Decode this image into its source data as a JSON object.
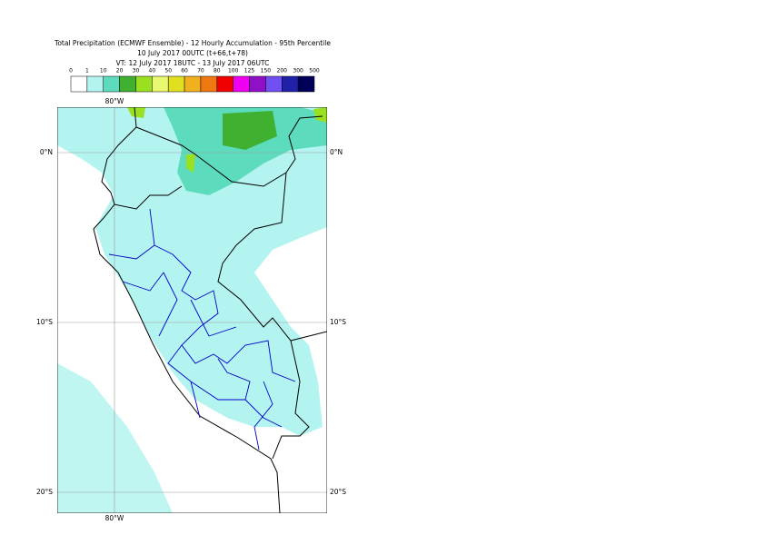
{
  "header": {
    "lines": [
      "Total Precipitation (ECMWF Ensemble) - 12 Hourly Accumulation - 95th Percentile",
      "10 July 2017 00UTC (t+66,t+78)",
      "VT: 12 July 2017 18UTC - 13 July 2017 06UTC"
    ]
  },
  "legend": {
    "labels": [
      "0",
      "1",
      "10",
      "20",
      "30",
      "40",
      "50",
      "60",
      "70",
      "80",
      "100",
      "125",
      "150",
      "200",
      "300",
      "500"
    ],
    "colors": [
      "#ffffff",
      "#b4f4f0",
      "#5cdcbc",
      "#40b030",
      "#98e020",
      "#e8f870",
      "#e0e020",
      "#f0b020",
      "#f07810",
      "#f00000",
      "#f000f0",
      "#9010c8",
      "#7050f0",
      "#2020a8",
      "#000058"
    ]
  },
  "map": {
    "lat_labels": [
      "0°N",
      "10°S",
      "20°S"
    ],
    "lon_label_top": "80°W",
    "lon_label_bottom": "80°W"
  }
}
